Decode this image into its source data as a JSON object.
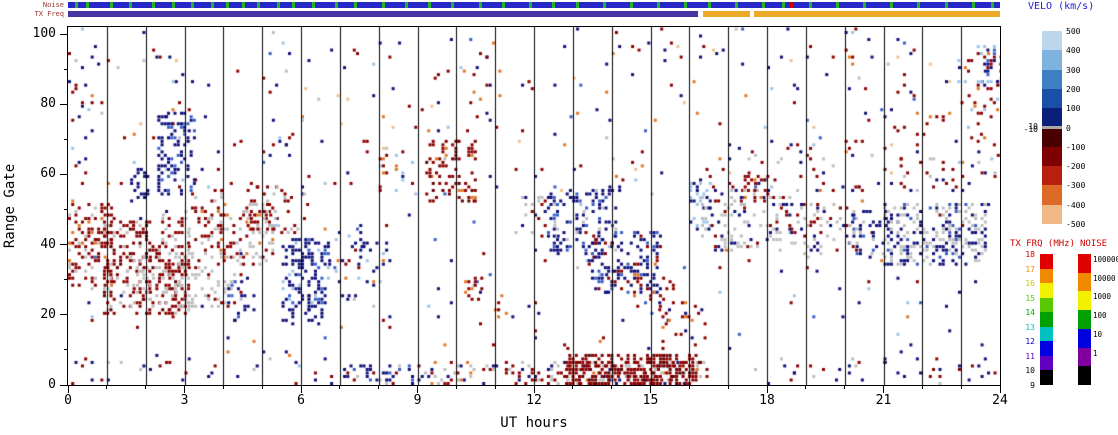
{
  "labels": {
    "noise_strip": "Noise",
    "txfreq_strip": "TX Freq",
    "velo_title": "VELO (km/s)",
    "txfrq_title": "TX FRQ (MHz)",
    "noise_title": "NOISE",
    "xlabel": "UT hours",
    "ylabel": "Range Gate"
  },
  "chart_data": {
    "type": "heatmap",
    "title": "",
    "xlabel": "UT hours",
    "ylabel": "Range Gate",
    "xlim": [
      0,
      24
    ],
    "ylim": [
      0,
      102
    ],
    "xticks": [
      0,
      3,
      6,
      9,
      12,
      15,
      18,
      21,
      24
    ],
    "yticks": [
      0,
      20,
      40,
      60,
      80,
      100
    ],
    "x_minor_step": 1,
    "y_minor_step": 10,
    "hour_gridlines": true,
    "seed": 1234,
    "palette": {
      "R": "#8B0000",
      "D": "#5E0000",
      "B": "#10107A",
      "M": "#3A5FC8",
      "L": "#9CC4E8",
      "G": "#BEBEBE",
      "O": "#E07828",
      "P": "#F0C090"
    },
    "regions": [
      {
        "t0": 0,
        "t1": 24,
        "g0": 2,
        "g1": 102,
        "d": 0.012,
        "c": {
          "R": 3,
          "B": 3,
          "G": 1,
          "O": 1,
          "L": 1,
          "M": 1
        }
      },
      {
        "t0": 0,
        "t1": 24,
        "g0": 55,
        "g1": 100,
        "d": 0.015,
        "c": {
          "R": 3,
          "B": 3,
          "O": 1,
          "L": 1,
          "P": 1
        }
      },
      {
        "t0": 0,
        "t1": 1.1,
        "g0": 28,
        "g1": 52,
        "d": 0.3,
        "c": {
          "R": 7,
          "G": 2,
          "O": 1
        }
      },
      {
        "t0": 0,
        "t1": 0.6,
        "g0": 75,
        "g1": 95,
        "d": 0.05,
        "c": {
          "R": 6,
          "B": 4
        }
      },
      {
        "t0": 0.9,
        "t1": 3.1,
        "g0": 20,
        "g1": 48,
        "d": 0.32,
        "c": {
          "R": 7,
          "G": 2,
          "D": 1
        }
      },
      {
        "t0": 1.5,
        "t1": 4.5,
        "g0": 22,
        "g1": 38,
        "d": 0.22,
        "c": {
          "G": 8,
          "R": 2
        }
      },
      {
        "t0": 1.6,
        "t1": 2.05,
        "g0": 52,
        "g1": 62,
        "d": 0.3,
        "c": {
          "B": 9,
          "M": 1
        }
      },
      {
        "t0": 2.3,
        "t1": 3.25,
        "g0": 54,
        "g1": 78,
        "d": 0.32,
        "c": {
          "B": 8,
          "M": 2
        }
      },
      {
        "t0": 3.0,
        "t1": 4.0,
        "g0": 38,
        "g1": 56,
        "d": 0.2,
        "c": {
          "R": 5,
          "G": 4,
          "O": 1
        }
      },
      {
        "t0": 3.9,
        "t1": 5.3,
        "g0": 34,
        "g1": 52,
        "d": 0.28,
        "c": {
          "G": 5,
          "R": 4,
          "O": 1
        }
      },
      {
        "t0": 4.1,
        "t1": 4.6,
        "g0": 18,
        "g1": 30,
        "d": 0.2,
        "c": {
          "B": 8,
          "M": 2
        }
      },
      {
        "t0": 4.6,
        "t1": 5.4,
        "g0": 44,
        "g1": 58,
        "d": 0.25,
        "c": {
          "R": 8,
          "G": 2
        }
      },
      {
        "t0": 5.5,
        "t1": 6.7,
        "g0": 17,
        "g1": 42,
        "d": 0.35,
        "c": {
          "B": 8,
          "M": 1,
          "L": 1
        }
      },
      {
        "t0": 5.3,
        "t1": 6.3,
        "g0": 43,
        "g1": 56,
        "d": 0.12,
        "c": {
          "R": 6,
          "G": 3,
          "L": 1
        }
      },
      {
        "t0": 6.7,
        "t1": 7.6,
        "g0": 25,
        "g1": 45,
        "d": 0.07,
        "c": {
          "B": 5,
          "R": 2,
          "O": 2,
          "L": 1
        }
      },
      {
        "t0": 7.0,
        "t1": 9.0,
        "g0": 0,
        "g1": 6,
        "d": 0.25,
        "c": {
          "B": 5,
          "M": 2,
          "G": 2,
          "R": 1
        }
      },
      {
        "t0": 7.5,
        "t1": 8.3,
        "g0": 28,
        "g1": 42,
        "d": 0.12,
        "c": {
          "B": 6,
          "L": 2,
          "O": 2
        }
      },
      {
        "t0": 8.0,
        "t1": 9.0,
        "g0": 55,
        "g1": 68,
        "d": 0.1,
        "c": {
          "R": 6,
          "O": 2,
          "L": 2
        }
      },
      {
        "t0": 9.2,
        "t1": 10.5,
        "g0": 52,
        "g1": 70,
        "d": 0.3,
        "c": {
          "R": 8,
          "D": 1,
          "O": 1
        }
      },
      {
        "t0": 9.0,
        "t1": 16.5,
        "g0": 0,
        "g1": 7,
        "d": 0.3,
        "c": {
          "R": 4,
          "G": 3,
          "B": 2,
          "O": 1
        }
      },
      {
        "t0": 12.8,
        "t1": 16.3,
        "g0": 0,
        "g1": 9,
        "d": 0.55,
        "c": {
          "R": 8,
          "D": 2
        }
      },
      {
        "t0": 10.2,
        "t1": 10.7,
        "g0": 24,
        "g1": 31,
        "d": 0.3,
        "c": {
          "R": 9,
          "O": 1
        }
      },
      {
        "t0": 10.8,
        "t1": 11.2,
        "g0": 18,
        "g1": 26,
        "d": 0.15,
        "c": {
          "R": 8,
          "O": 2
        }
      },
      {
        "t0": 11.5,
        "t1": 12.6,
        "g0": 42,
        "g1": 55,
        "d": 0.12,
        "c": {
          "G": 6,
          "R": 2,
          "B": 2
        }
      },
      {
        "t0": 12.4,
        "t1": 14.1,
        "g0": 38,
        "g1": 56,
        "d": 0.3,
        "c": {
          "B": 7,
          "M": 2,
          "G": 1
        }
      },
      {
        "t0": 13.3,
        "t1": 15.3,
        "g0": 26,
        "g1": 44,
        "d": 0.3,
        "c": {
          "B": 7,
          "M": 1,
          "R": 2
        }
      },
      {
        "t0": 14.3,
        "t1": 15.6,
        "g0": 22,
        "g1": 32,
        "d": 0.12,
        "c": {
          "R": 7,
          "O": 3
        }
      },
      {
        "t0": 15.2,
        "t1": 16.4,
        "g0": 10,
        "g1": 24,
        "d": 0.1,
        "c": {
          "R": 5,
          "B": 3,
          "O": 2
        }
      },
      {
        "t0": 16.0,
        "t1": 16.5,
        "g0": 44,
        "g1": 58,
        "d": 0.2,
        "c": {
          "L": 5,
          "B": 5
        }
      },
      {
        "t0": 16.3,
        "t1": 18.6,
        "g0": 38,
        "g1": 56,
        "d": 0.22,
        "c": {
          "G": 6,
          "R": 2,
          "B": 2
        }
      },
      {
        "t0": 17.4,
        "t1": 18.0,
        "g0": 52,
        "g1": 60,
        "d": 0.25,
        "c": {
          "R": 9,
          "O": 1
        }
      },
      {
        "t0": 18.6,
        "t1": 20.3,
        "g0": 36,
        "g1": 52,
        "d": 0.18,
        "c": {
          "G": 6,
          "B": 2,
          "R": 2
        }
      },
      {
        "t0": 20.2,
        "t1": 21.1,
        "g0": 36,
        "g1": 50,
        "d": 0.25,
        "c": {
          "B": 6,
          "G": 3,
          "M": 1
        }
      },
      {
        "t0": 21.0,
        "t1": 23.6,
        "g0": 34,
        "g1": 52,
        "d": 0.35,
        "c": {
          "G": 5,
          "B": 4,
          "M": 1
        }
      },
      {
        "t0": 22.9,
        "t1": 24,
        "g0": 68,
        "g1": 96,
        "d": 0.12,
        "c": {
          "R": 7,
          "O": 1,
          "L": 2
        }
      },
      {
        "t0": 23.4,
        "t1": 24,
        "g0": 84,
        "g1": 97,
        "d": 0.2,
        "c": {
          "L": 5,
          "M": 3,
          "B": 2
        }
      },
      {
        "t0": 16.5,
        "t1": 24,
        "g0": 55,
        "g1": 70,
        "d": 0.04,
        "c": {
          "R": 5,
          "B": 3,
          "G": 2
        }
      },
      {
        "t0": 18,
        "t1": 24,
        "g0": 0,
        "g1": 8,
        "d": 0.08,
        "c": {
          "B": 5,
          "R": 3,
          "G": 2
        }
      },
      {
        "t0": 0,
        "t1": 7,
        "g0": 0,
        "g1": 8,
        "d": 0.05,
        "c": {
          "B": 4,
          "R": 4,
          "G": 2
        }
      }
    ],
    "strips": {
      "noise": {
        "base_color": "#2828C8",
        "mark_color": "#28B428",
        "marks": [
          0.2,
          0.5,
          1.1,
          1.6,
          2.2,
          2.7,
          3.2,
          3.7,
          4.1,
          4.5,
          4.9,
          5.4,
          5.8,
          6.3,
          6.9,
          7.4,
          8.1,
          8.7,
          9.3,
          9.9,
          10.6,
          11.2,
          11.9,
          12.5,
          13.1,
          13.8,
          14.5,
          15.2,
          15.9,
          16.5,
          17.2,
          17.9,
          18.4,
          19.1,
          19.8,
          20.5,
          21.2,
          21.9,
          22.6,
          23.3,
          23.8
        ],
        "special_marks": [
          {
            "t": 18.62,
            "color": "#D00000"
          }
        ]
      },
      "txfreq": {
        "segments": [
          {
            "t0": 0,
            "t1": 16.22,
            "color": "#4434A4"
          },
          {
            "t0": 16.34,
            "t1": 17.55,
            "color": "#ECAA28"
          },
          {
            "t0": 17.66,
            "t1": 24,
            "color": "#ECAA28"
          }
        ]
      }
    },
    "colorbars": {
      "velo": {
        "title": "VELO (km/s)",
        "range": [
          -500,
          500
        ],
        "segments": [
          [
            500,
            400,
            "#BBD7EE"
          ],
          [
            400,
            300,
            "#7FB2DE"
          ],
          [
            300,
            200,
            "#3F7FC4"
          ],
          [
            200,
            100,
            "#1A4FA8"
          ],
          [
            100,
            10,
            "#0A1F7A"
          ],
          [
            10,
            -10,
            "#A8A8A8"
          ],
          [
            -10,
            -100,
            "#4A0000"
          ],
          [
            -100,
            -200,
            "#7E0000"
          ],
          [
            -200,
            -300,
            "#B81F0E"
          ],
          [
            -300,
            -400,
            "#DE6A28"
          ],
          [
            -400,
            -500,
            "#F2B988"
          ]
        ],
        "right_labels": [
          500,
          400,
          300,
          200,
          100,
          0,
          -100,
          -200,
          -300,
          -400,
          -500
        ],
        "left_labels": [
          10,
          -10
        ]
      },
      "txfrq": {
        "title": "TX FRQ (MHz)",
        "labels": [
          18,
          17,
          16,
          15,
          14,
          13,
          12,
          11,
          10,
          9
        ],
        "label_colors": [
          "#E00000",
          "#F08800",
          "#C8C800",
          "#58C800",
          "#00A000",
          "#00C0C0",
          "#0000E0",
          "#6000C0",
          "#000000",
          "#000000"
        ],
        "segments": [
          "#E00000",
          "#F08800",
          "#F0F000",
          "#58C800",
          "#00A000",
          "#00C0C0",
          "#0000E0",
          "#6000C0",
          "#000000"
        ]
      },
      "noise": {
        "title": "NOISE",
        "labels": [
          "100000",
          "10000",
          "1000",
          "100",
          "10",
          "1"
        ],
        "segments": [
          "#E00000",
          "#F08800",
          "#F0F000",
          "#00A000",
          "#0000E0",
          "#8000A0",
          "#000000"
        ]
      }
    }
  }
}
